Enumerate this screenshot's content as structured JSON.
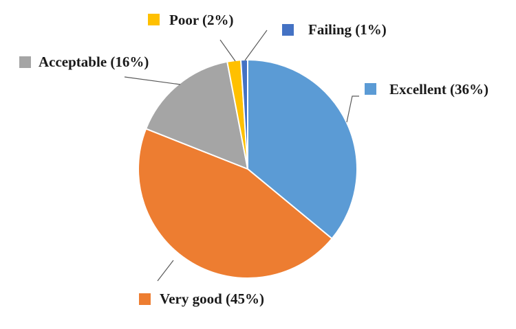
{
  "chart_data": {
    "type": "pie",
    "slices": [
      {
        "name": "Excellent",
        "value": 36,
        "label": "Excellent (36%)",
        "color": "#5B9BD5"
      },
      {
        "name": "Very good",
        "value": 45,
        "label": "Very good (45%)",
        "color": "#ED7D31"
      },
      {
        "name": "Acceptable",
        "value": 16,
        "label": "Acceptable (16%)",
        "color": "#A5A5A5"
      },
      {
        "name": "Poor",
        "value": 2,
        "label": "Poor (2%)",
        "color": "#FFC000"
      },
      {
        "name": "Failing",
        "value": 1,
        "label": "Failing (1%)",
        "color": "#4472C4"
      }
    ],
    "start_angle": "12 o'clock",
    "direction": "clockwise",
    "legend": "data labels with leader lines"
  }
}
